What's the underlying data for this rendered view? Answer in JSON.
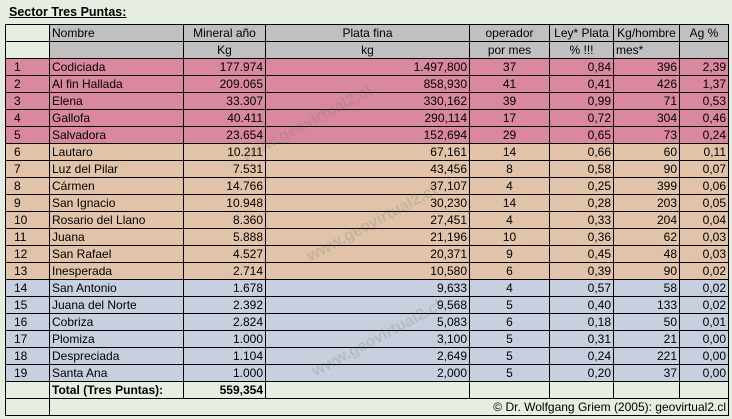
{
  "title": "Sector Tres Puntas:",
  "header_row1": [
    "Nombre",
    "Mineral año",
    "Plata fina",
    "operador",
    "Ley* Plata",
    "Kg/hombre",
    "Ag %"
  ],
  "header_row2": [
    "Kg",
    "kg",
    "por mes",
    "% !!!",
    "mes*"
  ],
  "rows": [
    {
      "n": "1",
      "name": "Codiciada",
      "mineral": "177.974",
      "plata": "1.497,800",
      "op": "37",
      "ley": "0,84",
      "kgh": "396",
      "ag": "2,39"
    },
    {
      "n": "2",
      "name": "Al fin Hallada",
      "mineral": "209.065",
      "plata": "858,930",
      "op": "41",
      "ley": "0,41",
      "kgh": "426",
      "ag": "1,37"
    },
    {
      "n": "3",
      "name": "Elena",
      "mineral": "33.307",
      "plata": "330,162",
      "op": "39",
      "ley": "0,99",
      "kgh": "71",
      "ag": "0,53"
    },
    {
      "n": "4",
      "name": "Gallofa",
      "mineral": "40.411",
      "plata": "290,114",
      "op": "17",
      "ley": "0,72",
      "kgh": "304",
      "ag": "0,46"
    },
    {
      "n": "5",
      "name": "Salvadora",
      "mineral": "23.654",
      "plata": "152,694",
      "op": "29",
      "ley": "0,65",
      "kgh": "73",
      "ag": "0,24"
    },
    {
      "n": "6",
      "name": "Lautaro",
      "mineral": "10.211",
      "plata": "67,161",
      "op": "14",
      "ley": "0,66",
      "kgh": "60",
      "ag": "0,11"
    },
    {
      "n": "7",
      "name": "Luz del Pilar",
      "mineral": "7.531",
      "plata": "43,456",
      "op": "8",
      "ley": "0,58",
      "kgh": "90",
      "ag": "0,07"
    },
    {
      "n": "8",
      "name": "Cármen",
      "mineral": "14.766",
      "plata": "37,107",
      "op": "4",
      "ley": "0,25",
      "kgh": "399",
      "ag": "0,06"
    },
    {
      "n": "9",
      "name": "San Ignacio",
      "mineral": "10.948",
      "plata": "30,230",
      "op": "14",
      "ley": "0,28",
      "kgh": "203",
      "ag": "0,05"
    },
    {
      "n": "10",
      "name": "Rosario del Llano",
      "mineral": "8.360",
      "plata": "27,451",
      "op": "4",
      "ley": "0,33",
      "kgh": "204",
      "ag": "0,04"
    },
    {
      "n": "11",
      "name": "Juana",
      "mineral": "5.888",
      "plata": "21,196",
      "op": "10",
      "ley": "0,36",
      "kgh": "62",
      "ag": "0,03"
    },
    {
      "n": "12",
      "name": "San Rafael",
      "mineral": "4.527",
      "plata": "20,371",
      "op": "9",
      "ley": "0,45",
      "kgh": "48",
      "ag": "0,03"
    },
    {
      "n": "13",
      "name": "Inesperada",
      "mineral": "2.714",
      "plata": "10,580",
      "op": "6",
      "ley": "0,39",
      "kgh": "90",
      "ag": "0,02"
    },
    {
      "n": "14",
      "name": "San Antonio",
      "mineral": "1.678",
      "plata": "9,633",
      "op": "4",
      "ley": "0,57",
      "kgh": "58",
      "ag": "0,02"
    },
    {
      "n": "15",
      "name": "Juana del Norte",
      "mineral": "2.392",
      "plata": "9,568",
      "op": "5",
      "ley": "0,40",
      "kgh": "133",
      "ag": "0,02"
    },
    {
      "n": "16",
      "name": "Cobriza",
      "mineral": "2.824",
      "plata": "5,083",
      "op": "6",
      "ley": "0,18",
      "kgh": "50",
      "ag": "0,01"
    },
    {
      "n": "17",
      "name": "Plomiza",
      "mineral": "1.000",
      "plata": "3,100",
      "op": "5",
      "ley": "0,31",
      "kgh": "21",
      "ag": "0,00"
    },
    {
      "n": "18",
      "name": "Despreciada",
      "mineral": "1.104",
      "plata": "2,649",
      "op": "5",
      "ley": "0,24",
      "kgh": "221",
      "ag": "0,00"
    },
    {
      "n": "19",
      "name": "Santa Ana",
      "mineral": "1.000",
      "plata": "2,000",
      "op": "5",
      "ley": "0,20",
      "kgh": "37",
      "ag": "0,00"
    }
  ],
  "total_label": "Total (Tres Puntas):",
  "total_value": "559,354",
  "footer": "© Dr. Wolfgang Griem (2005): geovirtual2.cl",
  "watermark": "www.geovirtual2.cl",
  "colors": {
    "group1": "#d9889d",
    "group2": "#e0c3a8",
    "group3": "#c7d0df",
    "header": "#c0c0c0"
  }
}
